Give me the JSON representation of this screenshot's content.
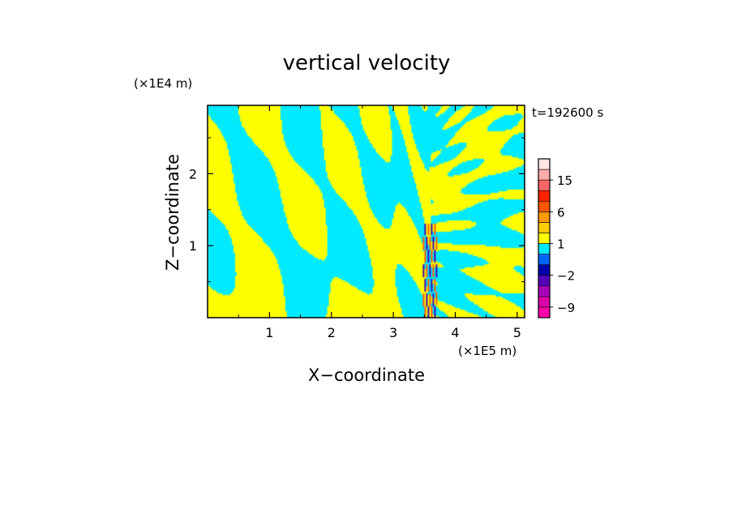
{
  "chart_data": {
    "type": "heatmap",
    "title": "vertical velocity",
    "xlabel": "X−coordinate",
    "ylabel": "Z−coordinate",
    "x_unit": "(×1E5 m)",
    "y_unit": "(×1E4 m)",
    "time_label": "t=192600 s",
    "xlim": [
      0,
      5.12
    ],
    "ylim": [
      0,
      2.95
    ],
    "x_ticks": [
      1,
      2,
      3,
      4,
      5
    ],
    "x_tick_labels": [
      "1",
      "2",
      "3",
      "4",
      "5"
    ],
    "y_ticks": [
      1,
      2
    ],
    "y_tick_labels": [
      "1",
      "2"
    ],
    "field_colors": {
      "positive": "#ffff00",
      "negative": "#00eaff"
    },
    "jet_center_x": 3.6,
    "colorbar": {
      "levels": [
        -12,
        -9,
        -6,
        -4,
        -2,
        -1,
        0,
        1,
        2,
        4,
        6,
        9,
        12,
        15,
        18,
        21
      ],
      "colors": [
        "#ff00aa",
        "#dd00aa",
        "#aa00bb",
        "#5500bb",
        "#0000aa",
        "#0066ff",
        "#00eaff",
        "#ffff00",
        "#ffcc00",
        "#ff9900",
        "#ff5500",
        "#ff2200",
        "#ff6666",
        "#ffaaaa",
        "#ffe4e4"
      ],
      "tick_values": [
        15,
        6,
        1,
        -2,
        -9
      ],
      "tick_labels": [
        "15",
        "6",
        "1",
        "−2",
        "−9"
      ]
    }
  }
}
